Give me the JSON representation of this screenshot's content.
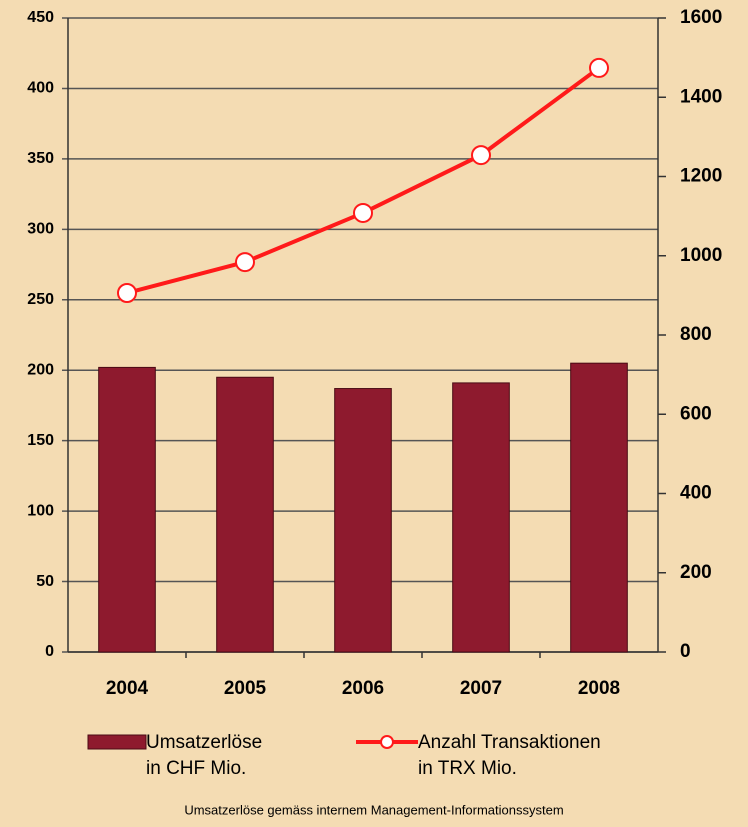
{
  "chart_data": {
    "type": "bar_line",
    "categories": [
      "2004",
      "2005",
      "2006",
      "2007",
      "2008"
    ],
    "series": [
      {
        "name": "Umsatzerlöse\nin CHF Mio.",
        "type": "bar",
        "color": "#8e1a2e",
        "values": [
          202,
          195,
          187,
          191,
          205
        ]
      },
      {
        "name": "Anzahl Transaktionen\nin TRX Mio.",
        "type": "line",
        "color": "#ff1a1a",
        "axis": "y2",
        "values": [
          906,
          984,
          1108,
          1254,
          1474
        ]
      }
    ],
    "ylim": [
      0,
      450
    ],
    "yticks": [
      0,
      50,
      100,
      150,
      200,
      250,
      300,
      350,
      400,
      450
    ],
    "y2lim": [
      0,
      1600
    ],
    "y2ticks": [
      0,
      200,
      400,
      600,
      800,
      1000,
      1200,
      1400,
      1600
    ],
    "grid": true,
    "note": "Umsatzerlöse gemäss internem Management-Informationssystem"
  }
}
